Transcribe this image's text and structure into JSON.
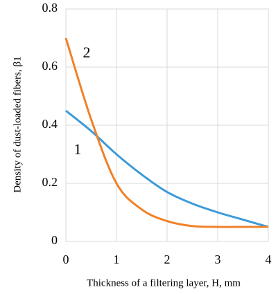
{
  "chart_data": {
    "type": "line",
    "x_label": "Thickness of a filtering  layer, H, mm",
    "y_label": "Density  of dust-loaded fibers, β1",
    "x": [
      0,
      0.5,
      1,
      1.5,
      2,
      2.5,
      3,
      3.5,
      4
    ],
    "series": [
      {
        "name": "1",
        "color": "#3d9ad8",
        "values": [
          0.45,
          0.38,
          0.3,
          0.23,
          0.17,
          0.13,
          0.1,
          0.075,
          0.05
        ]
      },
      {
        "name": "2",
        "color": "#f08129",
        "values": [
          0.7,
          0.42,
          0.2,
          0.11,
          0.07,
          0.053,
          0.05,
          0.05,
          0.05
        ]
      }
    ],
    "xlim": [
      0,
      4
    ],
    "xticks": [
      0,
      1,
      2,
      3,
      4
    ],
    "ylim": [
      0,
      0.8
    ],
    "yticks": [
      0,
      0.2,
      0.4,
      0.6,
      0.8
    ],
    "grid": true
  }
}
